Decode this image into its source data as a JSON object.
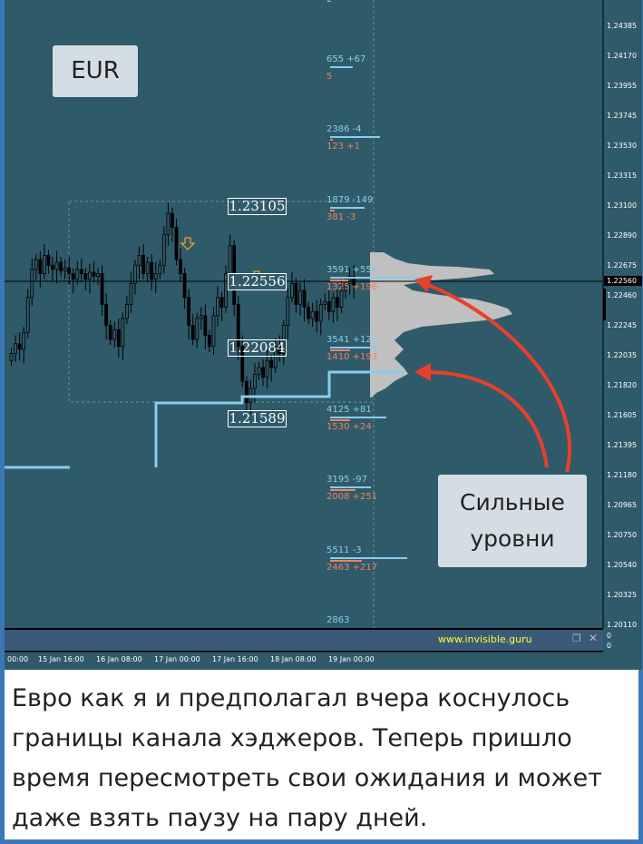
{
  "chart_data": {
    "type": "candlestick",
    "symbol_label": "EUR",
    "y_ticks": [
      "1.24385",
      "1.24170",
      "1.23955",
      "1.23745",
      "1.23530",
      "1.23315",
      "1.23100",
      "1.22890",
      "1.22675",
      "1.22460",
      "1.22245",
      "1.22035",
      "1.21820",
      "1.21605",
      "1.21395",
      "1.21180",
      "1.20965",
      "1.20750",
      "1.20540",
      "1.20325",
      "1.20110"
    ],
    "ylim": [
      1.2011,
      1.24385
    ],
    "current_price": "1.22560",
    "x_ticks": [
      "00:00",
      "15 Jan 16:00",
      "16 Jan 08:00",
      "17 Jan 00:00",
      "17 Jan 16:00",
      "18 Jan 08:00",
      "19 Jan 00:00"
    ],
    "closes": [
      1.2205,
      1.2212,
      1.2208,
      1.222,
      1.2245,
      1.2265,
      1.2272,
      1.2262,
      1.2275,
      1.2268,
      1.2265,
      1.227,
      1.2264,
      1.2266,
      1.2262,
      1.2258,
      1.2265,
      1.2262,
      1.2258,
      1.2263,
      1.226,
      1.2262,
      1.224,
      1.2225,
      1.2215,
      1.2222,
      1.221,
      1.223,
      1.224,
      1.2255,
      1.2268,
      1.2275,
      1.2262,
      1.227,
      1.2258,
      1.2262,
      1.2268,
      1.229,
      1.2305,
      1.2295,
      1.2272,
      1.2262,
      1.2245,
      1.2225,
      1.2215,
      1.223,
      1.2232,
      1.2218,
      1.221,
      1.2232,
      1.2245,
      1.2238,
      1.2262,
      1.2282,
      1.224,
      1.221,
      1.2185,
      1.217,
      1.218,
      1.219,
      1.2195,
      1.2188,
      1.22,
      1.2195,
      1.221,
      1.2205,
      1.2225,
      1.2245,
      1.2255,
      1.224,
      1.225,
      1.2238,
      1.223,
      1.2235,
      1.2228,
      1.224,
      1.2242,
      1.2235,
      1.2245,
      1.2238,
      1.225,
      1.2255,
      1.226,
      1.2254
    ],
    "levels": [
      "1.23105",
      "1.22556",
      "1.22084",
      "1.21589"
    ],
    "volume_labels": [
      {
        "blue": "2",
        "red": ""
      },
      {
        "blue": "655 +67",
        "red": "5"
      },
      {
        "blue": "2386 -4",
        "red": "123 +1"
      },
      {
        "blue": "1879 -149",
        "red": "381 -3"
      },
      {
        "blue": "3591 +554",
        "red": "1325 +196"
      },
      {
        "blue": "3541 +122",
        "red": "1410 +193"
      },
      {
        "blue": "4125 +81",
        "red": "1530 +24"
      },
      {
        "blue": "3195 -97",
        "red": "2008 +251"
      },
      {
        "blue": "5511 -3",
        "red": "2463 +217"
      },
      {
        "blue": "2863",
        "red": ""
      }
    ],
    "annotation": "Сильные уровни",
    "colors": {
      "background": "#2f5a6a",
      "candle": "#000000",
      "level_line": "#87ceeb",
      "arrow": "#e8402a",
      "profile": "#c0c0c0"
    }
  },
  "panel": {
    "site": "www.invisible.guru",
    "zero_a": "0",
    "zero_b": "0"
  },
  "caption": "Евро как я и предполагал вчера коснулось границы канала хэджеров. Теперь пришло время пересмотреть свои ожидания и может даже взять паузу на пару дней."
}
